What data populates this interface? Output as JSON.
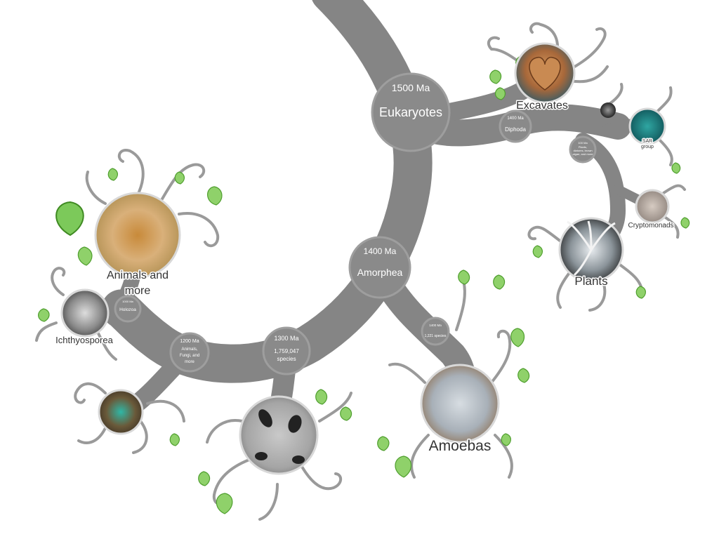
{
  "nodes": {
    "eukaryotes": {
      "age": "1500 Ma",
      "name": "Eukaryotes"
    },
    "amorphea": {
      "age": "1400 Ma",
      "name": "Amorphea"
    },
    "diphoda": {
      "age": "1400 Ma",
      "name": "Diphoda"
    },
    "plants_node": {
      "age": "100 Ma",
      "line1": "Plants,",
      "line2": "diatoms, brown",
      "line3": "algae, and more"
    },
    "opisthokonta": {
      "age": "1300 Ma",
      "line1": "1,759,047",
      "line2": "species"
    },
    "animals_fungi": {
      "age": "1200 Ma",
      "line1": "Animals,",
      "line2": "Fungi, and",
      "line3": "more"
    },
    "holozoa": {
      "age": "1000 Ma",
      "name": "Holozoa"
    },
    "amoebozoa_node": {
      "age": "1400 Ma",
      "name": "1,221 species"
    }
  },
  "groups": {
    "excavates": "Excavates",
    "sar_line1": "SAR",
    "sar_line2": "group",
    "cryptomonads": "Cryptomonads",
    "plants": "Plants",
    "animals_line1": "Animals and",
    "animals_line2": "more",
    "ichthyosporea": "Ichthyosporea",
    "amoebas": "Amoebas"
  },
  "colors": {
    "branch": "#858585",
    "node": "#8a8a8a",
    "leaf": "#8fd16a",
    "leaf_stroke": "#4f9e2e"
  }
}
